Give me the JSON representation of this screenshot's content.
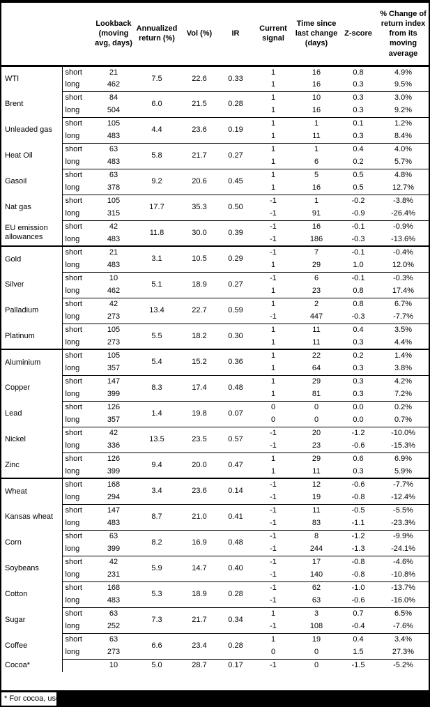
{
  "table": {
    "columns": [
      {
        "key": "name",
        "label": ""
      },
      {
        "key": "horizon",
        "label": ""
      },
      {
        "key": "lookback",
        "label": "Lookback\n(moving\navg, days)"
      },
      {
        "key": "ann",
        "label": "Annualized\nreturn (%)"
      },
      {
        "key": "vol",
        "label": "Vol (%)"
      },
      {
        "key": "ir",
        "label": "IR"
      },
      {
        "key": "signal",
        "label": "Current\nsignal"
      },
      {
        "key": "time",
        "label": "Time since\nlast change\n(days)"
      },
      {
        "key": "z",
        "label": "Z-score"
      },
      {
        "key": "chg",
        "label": "% Change of\nreturn index\nfrom its\nmoving\naverage"
      }
    ],
    "sections": [
      {
        "name": "energy",
        "commodities": [
          {
            "name": "WTI",
            "ann": "7.5",
            "vol": "22.6",
            "ir": "0.33",
            "rows": [
              {
                "horizon": "short",
                "lookback": "21",
                "signal": "1",
                "time": "16",
                "z": "0.8",
                "chg": "4.9%"
              },
              {
                "horizon": "long",
                "lookback": "462",
                "signal": "1",
                "time": "16",
                "z": "0.3",
                "chg": "9.5%"
              }
            ]
          },
          {
            "name": "Brent",
            "ann": "6.0",
            "vol": "21.5",
            "ir": "0.28",
            "rows": [
              {
                "horizon": "short",
                "lookback": "84",
                "signal": "1",
                "time": "10",
                "z": "0.3",
                "chg": "3.0%"
              },
              {
                "horizon": "long",
                "lookback": "504",
                "signal": "1",
                "time": "16",
                "z": "0.3",
                "chg": "9.2%"
              }
            ]
          },
          {
            "name": "Unleaded gas",
            "ann": "4.4",
            "vol": "23.6",
            "ir": "0.19",
            "rows": [
              {
                "horizon": "short",
                "lookback": "105",
                "signal": "1",
                "time": "1",
                "z": "0.1",
                "chg": "1.2%"
              },
              {
                "horizon": "long",
                "lookback": "483",
                "signal": "1",
                "time": "11",
                "z": "0.3",
                "chg": "8.4%"
              }
            ]
          },
          {
            "name": "Heat Oil",
            "ann": "5.8",
            "vol": "21.7",
            "ir": "0.27",
            "rows": [
              {
                "horizon": "short",
                "lookback": "63",
                "signal": "1",
                "time": "1",
                "z": "0.4",
                "chg": "4.0%"
              },
              {
                "horizon": "long",
                "lookback": "483",
                "signal": "1",
                "time": "6",
                "z": "0.2",
                "chg": "5.7%"
              }
            ]
          },
          {
            "name": "Gasoil",
            "ann": "9.2",
            "vol": "20.6",
            "ir": "0.45",
            "rows": [
              {
                "horizon": "short",
                "lookback": "63",
                "signal": "1",
                "time": "5",
                "z": "0.5",
                "chg": "4.8%"
              },
              {
                "horizon": "long",
                "lookback": "378",
                "signal": "1",
                "time": "16",
                "z": "0.5",
                "chg": "12.7%"
              }
            ]
          },
          {
            "name": "Nat gas",
            "ann": "17.7",
            "vol": "35.3",
            "ir": "0.50",
            "rows": [
              {
                "horizon": "short",
                "lookback": "105",
                "signal": "-1",
                "time": "1",
                "z": "-0.2",
                "chg": "-3.8%"
              },
              {
                "horizon": "long",
                "lookback": "315",
                "signal": "-1",
                "time": "91",
                "z": "-0.9",
                "chg": "-26.4%"
              }
            ]
          },
          {
            "name": "EU emission allowances",
            "ann": "11.8",
            "vol": "30.0",
            "ir": "0.39",
            "rows": [
              {
                "horizon": "short",
                "lookback": "42",
                "signal": "-1",
                "time": "16",
                "z": "-0.1",
                "chg": "-0.9%"
              },
              {
                "horizon": "long",
                "lookback": "483",
                "signal": "-1",
                "time": "186",
                "z": "-0.3",
                "chg": "-13.6%"
              }
            ]
          }
        ]
      },
      {
        "name": "precious-metals",
        "commodities": [
          {
            "name": "Gold",
            "ann": "3.1",
            "vol": "10.5",
            "ir": "0.29",
            "rows": [
              {
                "horizon": "short",
                "lookback": "21",
                "signal": "-1",
                "time": "7",
                "z": "-0.1",
                "chg": "-0.4%"
              },
              {
                "horizon": "long",
                "lookback": "483",
                "signal": "1",
                "time": "29",
                "z": "1.0",
                "chg": "12.0%"
              }
            ]
          },
          {
            "name": "Silver",
            "ann": "5.1",
            "vol": "18.9",
            "ir": "0.27",
            "rows": [
              {
                "horizon": "short",
                "lookback": "10",
                "signal": "-1",
                "time": "6",
                "z": "-0.1",
                "chg": "-0.3%"
              },
              {
                "horizon": "long",
                "lookback": "462",
                "signal": "1",
                "time": "23",
                "z": "0.8",
                "chg": "17.4%"
              }
            ]
          },
          {
            "name": "Palladium",
            "ann": "13.4",
            "vol": "22.7",
            "ir": "0.59",
            "rows": [
              {
                "horizon": "short",
                "lookback": "42",
                "signal": "1",
                "time": "2",
                "z": "0.8",
                "chg": "6.7%"
              },
              {
                "horizon": "long",
                "lookback": "273",
                "signal": "-1",
                "time": "447",
                "z": "-0.3",
                "chg": "-7.7%"
              }
            ]
          },
          {
            "name": "Platinum",
            "ann": "5.5",
            "vol": "18.2",
            "ir": "0.30",
            "rows": [
              {
                "horizon": "short",
                "lookback": "105",
                "signal": "1",
                "time": "11",
                "z": "0.4",
                "chg": "3.5%"
              },
              {
                "horizon": "long",
                "lookback": "273",
                "signal": "1",
                "time": "11",
                "z": "0.3",
                "chg": "4.4%"
              }
            ]
          }
        ]
      },
      {
        "name": "base-metals",
        "commodities": [
          {
            "name": "Aluminium",
            "ann": "5.4",
            "vol": "15.2",
            "ir": "0.36",
            "rows": [
              {
                "horizon": "short",
                "lookback": "105",
                "signal": "1",
                "time": "22",
                "z": "0.2",
                "chg": "1.4%"
              },
              {
                "horizon": "long",
                "lookback": "357",
                "signal": "1",
                "time": "64",
                "z": "0.3",
                "chg": "3.8%"
              }
            ]
          },
          {
            "name": "Copper",
            "ann": "8.3",
            "vol": "17.4",
            "ir": "0.48",
            "rows": [
              {
                "horizon": "short",
                "lookback": "147",
                "signal": "1",
                "time": "29",
                "z": "0.3",
                "chg": "4.2%"
              },
              {
                "horizon": "long",
                "lookback": "399",
                "signal": "1",
                "time": "81",
                "z": "0.3",
                "chg": "7.2%"
              }
            ]
          },
          {
            "name": "Lead",
            "ann": "1.4",
            "vol": "19.8",
            "ir": "0.07",
            "rows": [
              {
                "horizon": "short",
                "lookback": "126",
                "signal": "0",
                "time": "0",
                "z": "0.0",
                "chg": "0.2%"
              },
              {
                "horizon": "long",
                "lookback": "357",
                "signal": "0",
                "time": "0",
                "z": "0.0",
                "chg": "0.7%"
              }
            ]
          },
          {
            "name": "Nickel",
            "ann": "13.5",
            "vol": "23.5",
            "ir": "0.57",
            "rows": [
              {
                "horizon": "short",
                "lookback": "42",
                "signal": "-1",
                "time": "20",
                "z": "-1.2",
                "chg": "-10.0%"
              },
              {
                "horizon": "long",
                "lookback": "336",
                "signal": "-1",
                "time": "23",
                "z": "-0.6",
                "chg": "-15.3%"
              }
            ]
          },
          {
            "name": "Zinc",
            "ann": "9.4",
            "vol": "20.0",
            "ir": "0.47",
            "rows": [
              {
                "horizon": "short",
                "lookback": "126",
                "signal": "1",
                "time": "29",
                "z": "0.6",
                "chg": "6.9%"
              },
              {
                "horizon": "long",
                "lookback": "399",
                "signal": "1",
                "time": "11",
                "z": "0.3",
                "chg": "5.9%"
              }
            ]
          }
        ]
      },
      {
        "name": "agriculture",
        "commodities": [
          {
            "name": "Wheat",
            "ann": "3.4",
            "vol": "23.6",
            "ir": "0.14",
            "rows": [
              {
                "horizon": "short",
                "lookback": "168",
                "signal": "-1",
                "time": "12",
                "z": "-0.6",
                "chg": "-7.7%"
              },
              {
                "horizon": "long",
                "lookback": "294",
                "signal": "-1",
                "time": "19",
                "z": "-0.8",
                "chg": "-12.4%"
              }
            ]
          },
          {
            "name": "Kansas wheat",
            "ann": "8.7",
            "vol": "21.0",
            "ir": "0.41",
            "rows": [
              {
                "horizon": "short",
                "lookback": "147",
                "signal": "-1",
                "time": "11",
                "z": "-0.5",
                "chg": "-5.5%"
              },
              {
                "horizon": "long",
                "lookback": "483",
                "signal": "-1",
                "time": "83",
                "z": "-1.1",
                "chg": "-23.3%"
              }
            ]
          },
          {
            "name": "Corn",
            "ann": "8.2",
            "vol": "16.9",
            "ir": "0.48",
            "rows": [
              {
                "horizon": "short",
                "lookback": "63",
                "signal": "-1",
                "time": "8",
                "z": "-1.2",
                "chg": "-9.9%"
              },
              {
                "horizon": "long",
                "lookback": "399",
                "signal": "-1",
                "time": "244",
                "z": "-1.3",
                "chg": "-24.1%"
              }
            ]
          },
          {
            "name": "Soybeans",
            "ann": "5.9",
            "vol": "14.7",
            "ir": "0.40",
            "rows": [
              {
                "horizon": "short",
                "lookback": "42",
                "signal": "-1",
                "time": "17",
                "z": "-0.8",
                "chg": "-4.6%"
              },
              {
                "horizon": "long",
                "lookback": "231",
                "signal": "-1",
                "time": "140",
                "z": "-0.8",
                "chg": "-10.8%"
              }
            ]
          },
          {
            "name": "Cotton",
            "ann": "5.3",
            "vol": "18.9",
            "ir": "0.28",
            "rows": [
              {
                "horizon": "short",
                "lookback": "168",
                "signal": "-1",
                "time": "62",
                "z": "-1.0",
                "chg": "-13.7%"
              },
              {
                "horizon": "long",
                "lookback": "483",
                "signal": "-1",
                "time": "63",
                "z": "-0.6",
                "chg": "-16.0%"
              }
            ]
          },
          {
            "name": "Sugar",
            "ann": "7.3",
            "vol": "21.7",
            "ir": "0.34",
            "rows": [
              {
                "horizon": "short",
                "lookback": "63",
                "signal": "1",
                "time": "3",
                "z": "0.7",
                "chg": "6.5%"
              },
              {
                "horizon": "long",
                "lookback": "252",
                "signal": "-1",
                "time": "108",
                "z": "-0.4",
                "chg": "-7.6%"
              }
            ]
          },
          {
            "name": "Coffee",
            "ann": "6.6",
            "vol": "23.4",
            "ir": "0.28",
            "rows": [
              {
                "horizon": "short",
                "lookback": "63",
                "signal": "1",
                "time": "19",
                "z": "0.4",
                "chg": "3.4%"
              },
              {
                "horizon": "long",
                "lookback": "273",
                "signal": "0",
                "time": "0",
                "z": "1.5",
                "chg": "27.3%"
              }
            ]
          },
          {
            "name": "Cocoa*",
            "ann": "5.0",
            "vol": "28.7",
            "ir": "0.17",
            "rows": [
              {
                "horizon": "",
                "lookback": "10",
                "signal": "-1",
                "time": "0",
                "z": "-1.5",
                "chg": "-5.2%"
              }
            ]
          }
        ]
      }
    ],
    "footnote": "* For cocoa, uses"
  }
}
